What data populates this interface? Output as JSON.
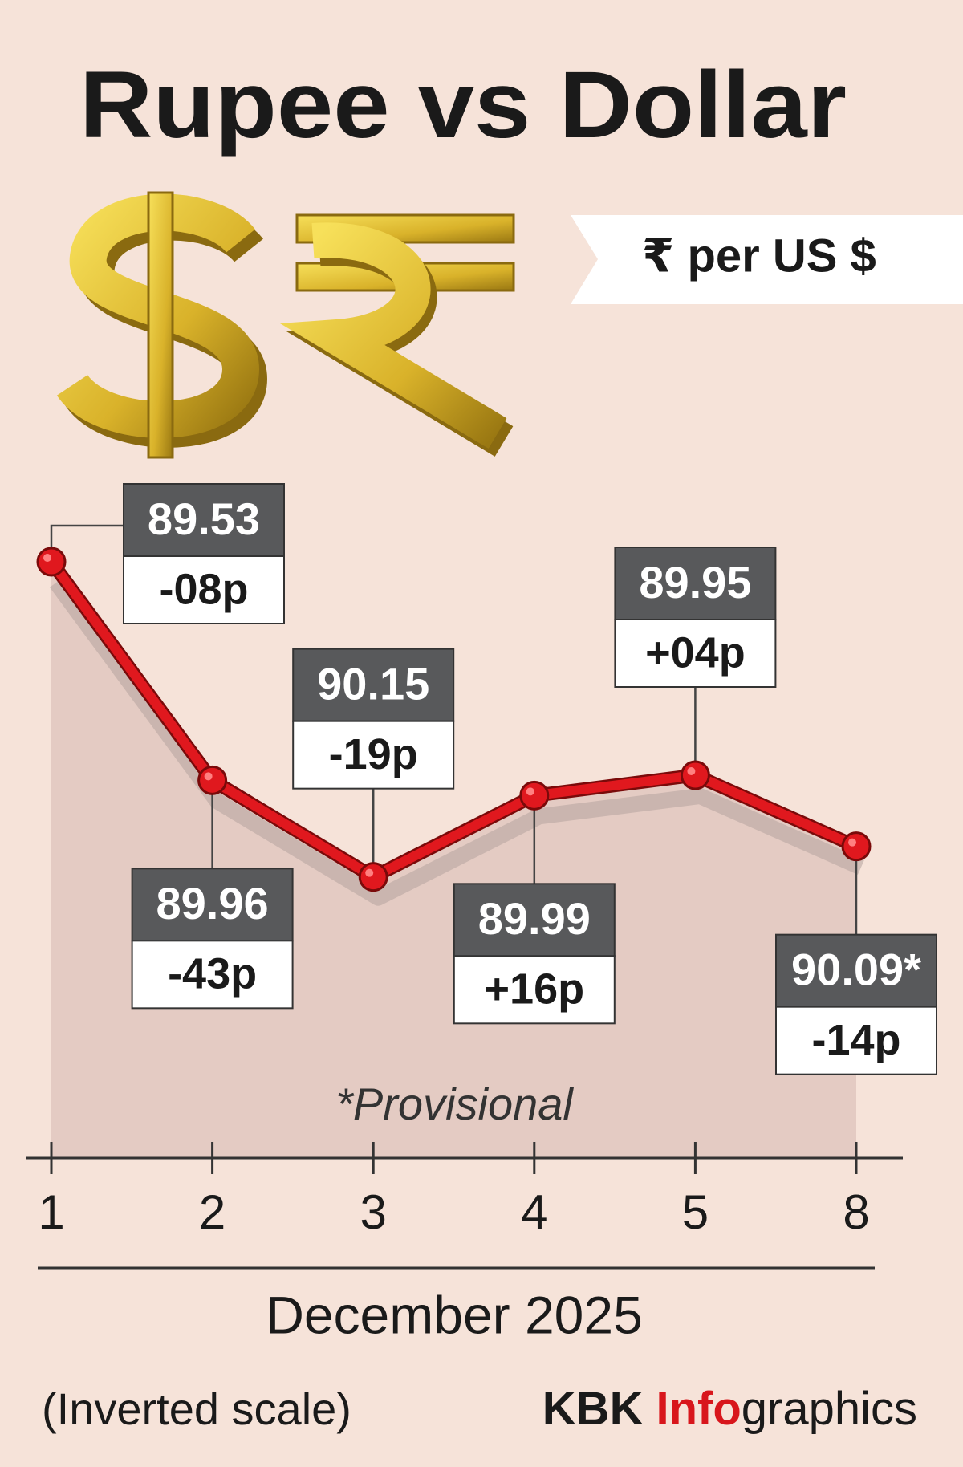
{
  "chart_data": {
    "type": "line",
    "title": "Rupee vs Dollar",
    "unit_label": "₹ per US $",
    "categories": [
      "1",
      "2",
      "3",
      "4",
      "5",
      "8"
    ],
    "values": [
      89.53,
      89.96,
      90.15,
      89.99,
      89.95,
      90.09
    ],
    "value_labels": [
      "89.53",
      "89.96",
      "90.15",
      "89.99",
      "89.95",
      "90.09*"
    ],
    "change_labels": [
      "-08p",
      "-43p",
      "-19p",
      "+16p",
      "+04p",
      "-14p"
    ],
    "note": "*Provisional",
    "x_label": "December 2025",
    "footnote": "(Inverted scale)",
    "source_parts": [
      "KBK",
      "Info",
      "graphics"
    ],
    "inverted": true,
    "ylim": [
      89.2,
      90.7
    ],
    "color": "#e0181e"
  }
}
